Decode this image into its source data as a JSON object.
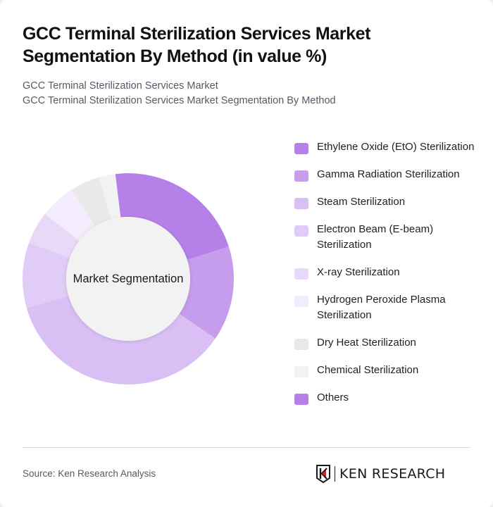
{
  "header": {
    "title": "GCC Terminal Sterilization Services Market Segmentation By Method (in value %)",
    "subtitle_line1": "GCC Terminal Sterilization Services Market",
    "subtitle_line2": "GCC Terminal Sterilization Services Market Segmentation By Method"
  },
  "chart": {
    "center_label": "Market Segmentation"
  },
  "legend": {
    "items": [
      {
        "label": "Ethylene Oxide (EtO) Sterilization",
        "color": "#b580e8"
      },
      {
        "label": "Gamma Radiation Sterilization",
        "color": "#c69cec"
      },
      {
        "label": "Steam Sterilization",
        "color": "#d9bff4"
      },
      {
        "label": "Electron Beam (E-beam) Sterilization",
        "color": "#e0ccf6"
      },
      {
        "label": "X-ray Sterilization",
        "color": "#e8d9f9"
      },
      {
        "label": "Hydrogen Peroxide Plasma Sterilization",
        "color": "#f3ecfc"
      },
      {
        "label": "Dry Heat Sterilization",
        "color": "#e9e9e9"
      },
      {
        "label": "Chemical Sterilization",
        "color": "#f3f3f3"
      },
      {
        "label": "Others",
        "color": "#b580e8"
      }
    ]
  },
  "footer": {
    "source": "Source: Ken Research Analysis",
    "logo_text": "KEN RESEARCH"
  },
  "chart_data": {
    "type": "pie",
    "subtype": "donut",
    "title": "GCC Terminal Sterilization Services Market Segmentation By Method (in value %)",
    "subtitle": "GCC Terminal Sterilization Services Market Segmentation By Method",
    "center_label": "Market Segmentation",
    "categories": [
      "Ethylene Oxide (EtO) Sterilization",
      "Gamma Radiation Sterilization",
      "Steam Sterilization",
      "Electron Beam (E-beam) Sterilization",
      "X-ray Sterilization",
      "Hydrogen Peroxide Plasma Sterilization",
      "Dry Heat Sterilization",
      "Chemical Sterilization",
      "Others"
    ],
    "values": [
      22,
      14.5,
      36,
      10,
      5,
      5.5,
      4.5,
      2.5,
      0
    ],
    "colors": [
      "#b580e8",
      "#c69cec",
      "#d9bff4",
      "#e0ccf6",
      "#e8d9f9",
      "#f3ecfc",
      "#e9e9e9",
      "#f3f3f3",
      "#b580e8"
    ],
    "start_angle_deg": -7,
    "legend_position": "right",
    "source": "Source: Ken Research Analysis"
  }
}
